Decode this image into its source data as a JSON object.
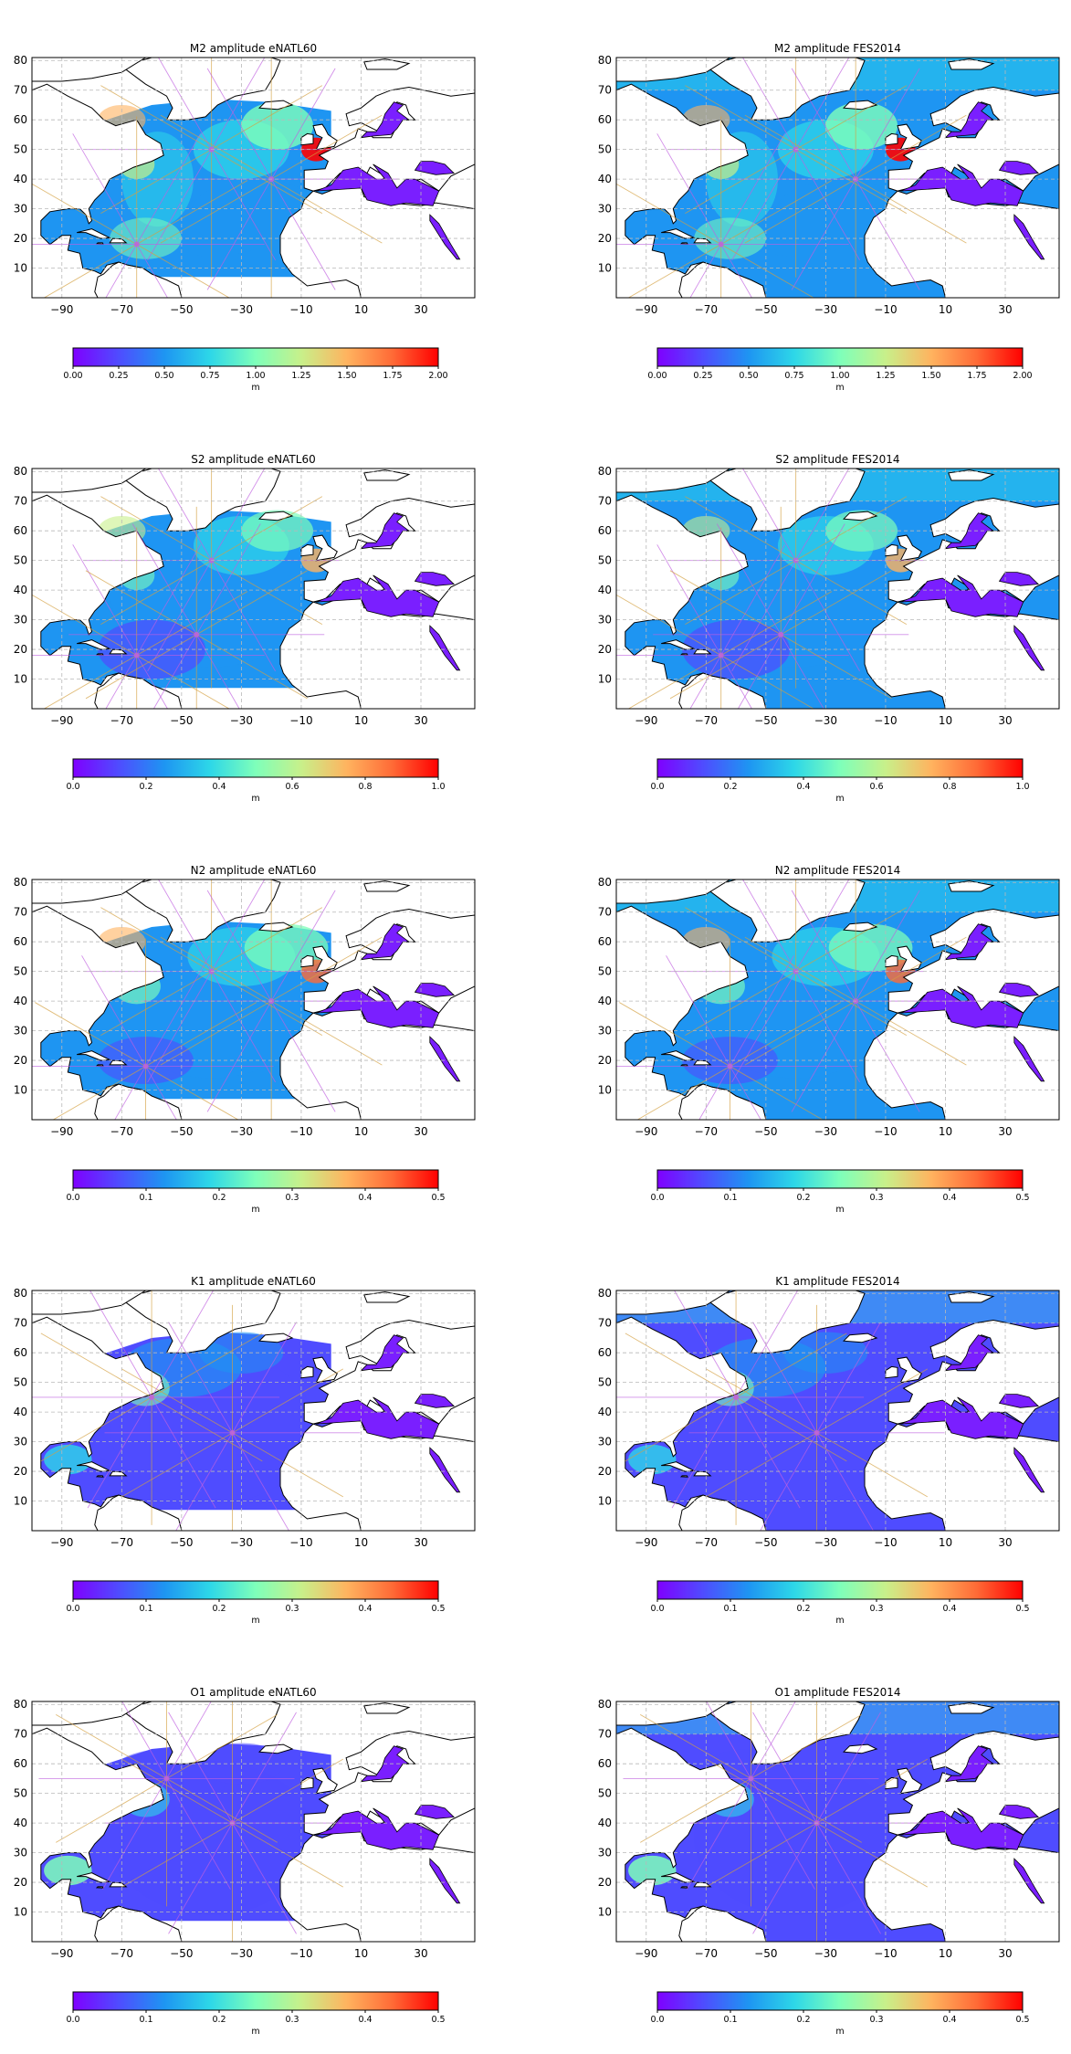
{
  "colors": {
    "ramp": [
      "#7f00ff",
      "#4f4cff",
      "#1e95f2",
      "#2dd7e8",
      "#7effba",
      "#c8f08a",
      "#ffb35f",
      "#ff6a36",
      "#ff0000"
    ],
    "land": "#ffffff",
    "coast": "#000000",
    "grid": "#b8b8b8",
    "enclosed_sea": "#7a1fff",
    "phase_line_a": "#d4a040",
    "phase_line_b": "#c060e0"
  },
  "axes": {
    "x_ticks": [
      "−90",
      "−70",
      "−50",
      "−30",
      "−10",
      "10",
      "30"
    ],
    "y_ticks": [
      "10",
      "20",
      "30",
      "40",
      "50",
      "60",
      "70",
      "80"
    ]
  },
  "panels": [
    {
      "title": "M2 amplitude eNATL60",
      "source": "eNATL60",
      "constituent": "M2",
      "amp_max": 2.0,
      "colorbar": {
        "ticks": [
          "0.00",
          "0.25",
          "0.50",
          "0.75",
          "1.00",
          "1.25",
          "1.50",
          "1.75",
          "2.00"
        ],
        "unit": "m"
      }
    },
    {
      "title": "M2 amplitude FES2014",
      "source": "FES2014",
      "constituent": "M2",
      "amp_max": 2.0,
      "colorbar": {
        "ticks": [
          "0.00",
          "0.25",
          "0.50",
          "0.75",
          "1.00",
          "1.25",
          "1.50",
          "1.75",
          "2.00"
        ],
        "unit": "m"
      }
    },
    {
      "title": "S2 amplitude eNATL60",
      "source": "eNATL60",
      "constituent": "S2",
      "amp_max": 1.0,
      "colorbar": {
        "ticks": [
          "0.0",
          "0.2",
          "0.4",
          "0.6",
          "0.8",
          "1.0"
        ],
        "unit": "m"
      }
    },
    {
      "title": "S2 amplitude FES2014",
      "source": "FES2014",
      "constituent": "S2",
      "amp_max": 1.0,
      "colorbar": {
        "ticks": [
          "0.0",
          "0.2",
          "0.4",
          "0.6",
          "0.8",
          "1.0"
        ],
        "unit": "m"
      }
    },
    {
      "title": "N2 amplitude eNATL60",
      "source": "eNATL60",
      "constituent": "N2",
      "amp_max": 0.5,
      "colorbar": {
        "ticks": [
          "0.0",
          "0.1",
          "0.2",
          "0.3",
          "0.4",
          "0.5"
        ],
        "unit": "m"
      }
    },
    {
      "title": "N2 amplitude FES2014",
      "source": "FES2014",
      "constituent": "N2",
      "amp_max": 0.5,
      "colorbar": {
        "ticks": [
          "0.0",
          "0.1",
          "0.2",
          "0.3",
          "0.4",
          "0.5"
        ],
        "unit": "m"
      }
    },
    {
      "title": "K1 amplitude eNATL60",
      "source": "eNATL60",
      "constituent": "K1",
      "amp_max": 0.5,
      "colorbar": {
        "ticks": [
          "0.0",
          "0.1",
          "0.2",
          "0.3",
          "0.4",
          "0.5"
        ],
        "unit": "m"
      }
    },
    {
      "title": "K1 amplitude FES2014",
      "source": "FES2014",
      "constituent": "K1",
      "amp_max": 0.5,
      "colorbar": {
        "ticks": [
          "0.0",
          "0.1",
          "0.2",
          "0.3",
          "0.4",
          "0.5"
        ],
        "unit": "m"
      }
    },
    {
      "title": "O1 amplitude eNATL60",
      "source": "eNATL60",
      "constituent": "O1",
      "amp_max": 0.5,
      "colorbar": {
        "ticks": [
          "0.0",
          "0.1",
          "0.2",
          "0.3",
          "0.4",
          "0.5"
        ],
        "unit": "m"
      }
    },
    {
      "title": "O1 amplitude FES2014",
      "source": "FES2014",
      "constituent": "O1",
      "amp_max": 0.5,
      "colorbar": {
        "ticks": [
          "0.0",
          "0.1",
          "0.2",
          "0.3",
          "0.4",
          "0.5"
        ],
        "unit": "m"
      }
    }
  ]
}
